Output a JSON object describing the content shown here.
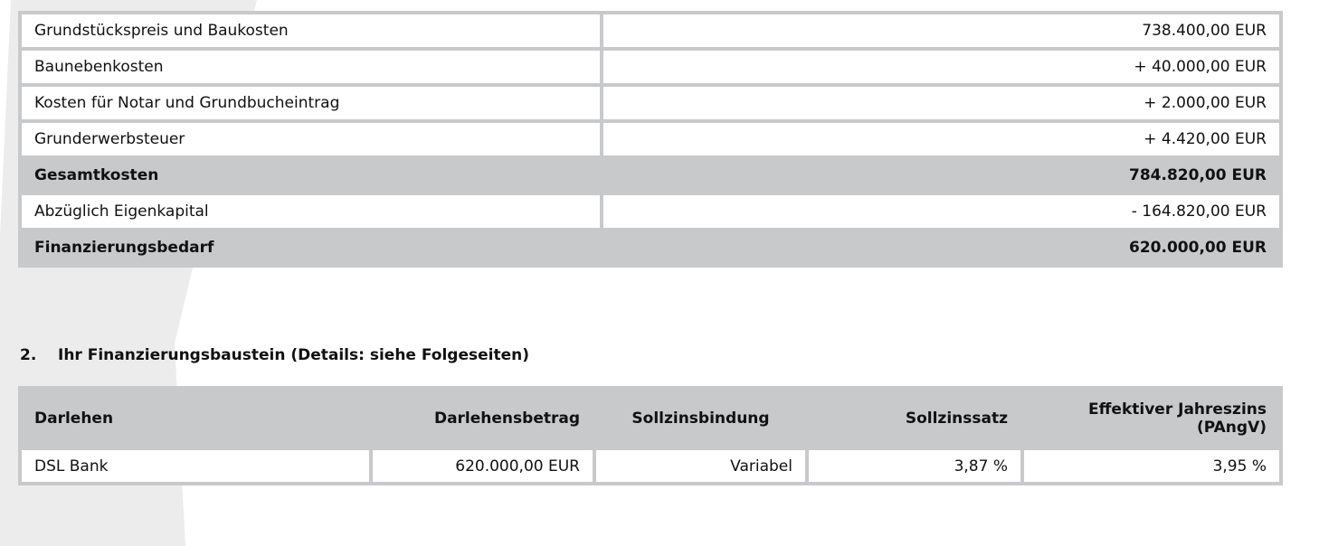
{
  "costs": {
    "rows": [
      {
        "label": "Grundstückspreis und Baukosten",
        "value": "738.400,00 EUR"
      },
      {
        "label": "Baunebenkosten",
        "value": "+ 40.000,00 EUR"
      },
      {
        "label": "Kosten für Notar und Grundbucheintrag",
        "value": "+ 2.000,00 EUR"
      },
      {
        "label": "Grunderwerbsteuer",
        "value": "+ 4.420,00 EUR"
      },
      {
        "label": "Gesamtkosten",
        "value": "784.820,00 EUR"
      },
      {
        "label": "Abzüglich Eigenkapital",
        "value": "- 164.820,00  EUR"
      },
      {
        "label": "Finanzierungsbedarf",
        "value": "620.000,00 EUR"
      }
    ]
  },
  "section2": {
    "number": "2.",
    "title": "Ihr Finanzierungsbaustein (Details: siehe Folgeseiten)"
  },
  "loans": {
    "headers": [
      "Darlehen",
      "Darlehensbetrag",
      "Sollzinsbindung",
      "Sollzinssatz",
      "Effektiver Jahreszins (PAngV)"
    ],
    "rows": [
      [
        "DSL Bank",
        "620.000,00 EUR",
        "Variabel",
        "3,87 %",
        "3,95 %"
      ]
    ]
  }
}
